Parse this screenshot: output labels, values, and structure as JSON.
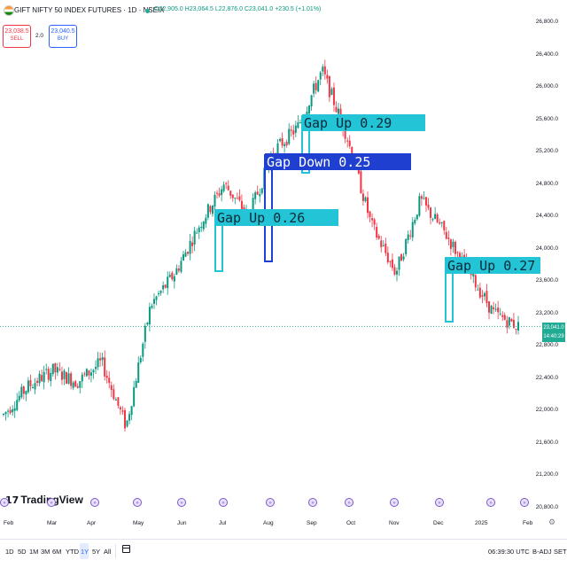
{
  "header": {
    "symbol": "GIFT NIFTY 50 INDEX FUTURES · 1D · NSEIX",
    "ohlc": "O22,905.0 H23,064.5 L22,876.0 C23,041.0 +230.5 (+1.01%)",
    "sell_price": "23,038.5",
    "sell_label": "SELL",
    "buy_price": "23,040.5",
    "buy_label": "BUY",
    "spread": "2.0"
  },
  "price_axis": [
    "26,800.0",
    "26,400.0",
    "26,000.0",
    "25,600.0",
    "25,200.0",
    "24,800.0",
    "24,400.0",
    "24,000.0",
    "23,600.0",
    "23,200.0",
    "22,800.0",
    "22,400.0",
    "22,000.0",
    "21,600.0",
    "21,200.0",
    "20,800.0"
  ],
  "last_price": {
    "price": "23,041.0",
    "countdown": "14:40:29",
    "color": "#22ab94"
  },
  "annotations": [
    {
      "label": "Gap Up 0.29",
      "color": "#22c4d6"
    },
    {
      "label": "Gap Down 0.25",
      "color": "#1e3fcf"
    },
    {
      "label": "Gap Up 0.26",
      "color": "#22c4d6"
    },
    {
      "label": "Gap Up 0.27",
      "color": "#22c4d6"
    }
  ],
  "brand": {
    "mark": "𝟭𝟳",
    "name": "TradingView"
  },
  "event_icon": "»",
  "time_axis": [
    "Feb",
    "Mar",
    "Apr",
    "May",
    "Jun",
    "Jul",
    "Aug",
    "Sep",
    "Oct",
    "Nov",
    "Dec",
    "2025",
    "Feb"
  ],
  "toolbar": {
    "ranges": [
      "1D",
      "5D",
      "1M",
      "3M",
      "6M",
      "YTD",
      "1Y",
      "5Y",
      "All"
    ],
    "active_range": "1Y",
    "time": "06:39:30 UTC",
    "adj": "B-ADJ",
    "set": "SET",
    "settings_icon": "gear-icon"
  },
  "chart_data": {
    "type": "candlestick",
    "instrument": "GIFT NIFTY 50 INDEX FUTURES",
    "interval": "1D",
    "ylim": [
      20800,
      26800
    ],
    "x_ticks": [
      "Feb",
      "Mar",
      "Apr",
      "May",
      "Jun",
      "Jul",
      "Aug",
      "Sep",
      "Oct",
      "Nov",
      "Dec",
      "2025",
      "Feb"
    ],
    "close_series_approx": [
      [
        "Feb",
        21950
      ],
      [
        "Mar",
        22300
      ],
      [
        "Apr",
        22500
      ],
      [
        "May",
        22350
      ],
      [
        "May",
        22600
      ],
      [
        "Jun",
        21800
      ],
      [
        "Jun",
        23300
      ],
      [
        "Jul",
        23700
      ],
      [
        "Jul",
        24300
      ],
      [
        "Aug",
        24800
      ],
      [
        "Aug",
        24400
      ],
      [
        "Sep",
        25200
      ],
      [
        "Sep",
        25500
      ],
      [
        "Oct",
        26200
      ],
      [
        "Oct",
        25400
      ],
      [
        "Nov",
        24300
      ],
      [
        "Nov",
        23700
      ],
      [
        "Dec",
        24600
      ],
      [
        "Dec",
        24200
      ],
      [
        "2025",
        23700
      ],
      [
        "2025",
        23200
      ],
      [
        "Feb",
        23041
      ]
    ],
    "last": 23041.0,
    "colors": {
      "up": "#089981",
      "down": "#f23645"
    }
  }
}
